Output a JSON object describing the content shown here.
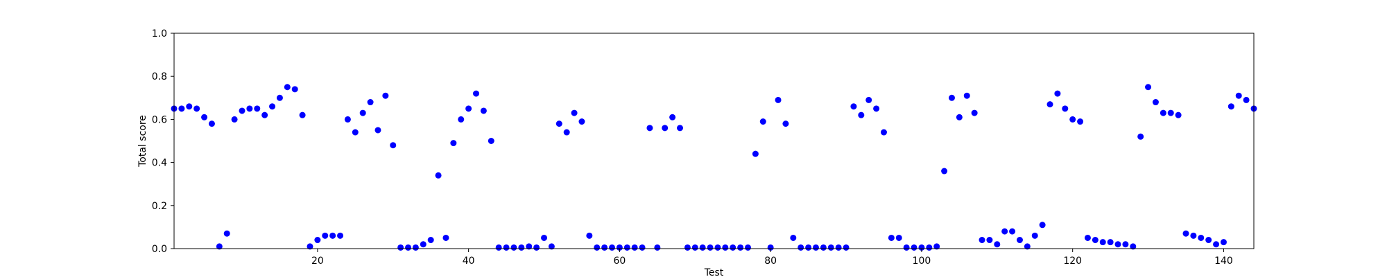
{
  "chart_data": {
    "type": "scatter",
    "xlabel": "Test",
    "ylabel": "Total score",
    "xlim": [
      1,
      144
    ],
    "ylim": [
      0.0,
      1.0
    ],
    "xticks": [
      20,
      40,
      60,
      80,
      100,
      120,
      140
    ],
    "yticks": [
      "0.0",
      "0.2",
      "0.4",
      "0.6",
      "0.8",
      "1.0"
    ],
    "grid": false,
    "marker_color": "#0000ff",
    "series": [
      {
        "x": [
          1,
          2,
          3,
          4,
          5,
          6,
          7,
          8,
          9,
          10,
          11,
          12,
          13,
          14,
          15,
          16,
          17,
          18,
          19,
          20,
          21,
          22,
          23,
          24,
          25,
          26,
          27,
          28,
          29,
          30,
          31,
          32,
          33,
          34,
          35,
          36,
          37,
          38,
          39,
          40,
          41,
          42,
          43,
          44,
          45,
          46,
          47,
          48,
          49,
          50,
          51,
          52,
          53,
          54,
          55,
          56,
          57,
          58,
          59,
          60,
          61,
          62,
          63,
          64,
          65,
          66,
          67,
          68,
          69,
          70,
          71,
          72,
          73,
          74,
          75,
          76,
          77,
          78,
          79,
          80,
          81,
          82,
          83,
          84,
          85,
          86,
          87,
          88,
          89,
          90,
          91,
          92,
          93,
          94,
          95,
          96,
          97,
          98,
          99,
          100,
          101,
          102,
          103,
          104,
          105,
          106,
          107,
          108,
          109,
          110,
          111,
          112,
          113,
          114,
          115,
          116,
          117,
          118,
          119,
          120,
          121,
          122,
          123,
          124,
          125,
          126,
          127,
          128,
          129,
          130,
          131,
          132,
          133,
          134,
          135,
          136,
          137,
          138,
          139,
          140,
          141,
          142,
          143,
          144
        ],
        "y": [
          0.65,
          0.65,
          0.66,
          0.65,
          0.61,
          0.58,
          0.01,
          0.07,
          0.6,
          0.64,
          0.65,
          0.65,
          0.62,
          0.66,
          0.7,
          0.75,
          0.74,
          0.62,
          0.01,
          0.04,
          0.06,
          0.06,
          0.06,
          0.6,
          0.54,
          0.63,
          0.68,
          0.55,
          0.71,
          0.48,
          0.005,
          0.005,
          0.005,
          0.02,
          0.04,
          0.34,
          0.05,
          0.49,
          0.6,
          0.65,
          0.72,
          0.64,
          0.5,
          0.005,
          0.005,
          0.005,
          0.005,
          0.01,
          0.005,
          0.05,
          0.01,
          0.58,
          0.54,
          0.63,
          0.59,
          0.06,
          0.005,
          0.005,
          0.005,
          0.005,
          0.005,
          0.005,
          0.005,
          0.56,
          0.005,
          0.56,
          0.61,
          0.56,
          0.005,
          0.005,
          0.005,
          0.005,
          0.005,
          0.005,
          0.005,
          0.005,
          0.005,
          0.44,
          0.59,
          0.005,
          0.69,
          0.58,
          0.05,
          0.005,
          0.005,
          0.005,
          0.005,
          0.005,
          0.005,
          0.005,
          0.66,
          0.62,
          0.69,
          0.65,
          0.54,
          0.05,
          0.05,
          0.005,
          0.005,
          0.005,
          0.005,
          0.01,
          0.36,
          0.7,
          0.61,
          0.71,
          0.63,
          0.04,
          0.04,
          0.02,
          0.08,
          0.08,
          0.04,
          0.01,
          0.06,
          0.11,
          0.67,
          0.72,
          0.65,
          0.6,
          0.59,
          0.05,
          0.04,
          0.03,
          0.03,
          0.02,
          0.02,
          0.01,
          0.52,
          0.75,
          0.68,
          0.63,
          0.63,
          0.62,
          0.07,
          0.06,
          0.05,
          0.04,
          0.02,
          0.03,
          0.66,
          0.71,
          0.69,
          0.65
        ]
      }
    ]
  }
}
